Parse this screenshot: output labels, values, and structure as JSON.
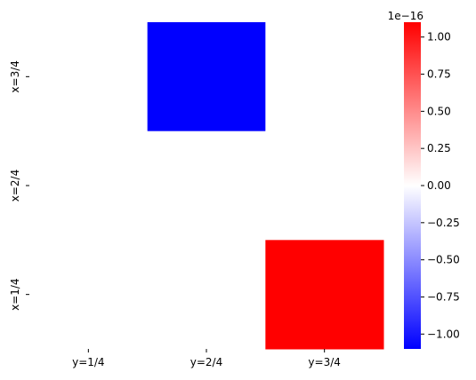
{
  "chart_data": {
    "type": "heatmap",
    "x_categories": [
      "y=1/4",
      "y=2/4",
      "y=3/4"
    ],
    "y_categories": [
      "x=3/4",
      "x=2/4",
      "x=1/4"
    ],
    "values": [
      [
        0.0,
        -1.1e-16,
        0.0
      ],
      [
        0.0,
        0.0,
        0.0
      ],
      [
        0.0,
        0.0,
        1.1e-16
      ]
    ],
    "colormap": {
      "low": "#0000ff",
      "mid": "#ffffff",
      "high": "#ff0000"
    },
    "vlim": [
      -1.1e-16,
      1.1e-16
    ],
    "colorbar": {
      "ticks": [
        1.0,
        0.75,
        0.5,
        0.25,
        0.0,
        -0.25,
        -0.5,
        -0.75,
        -1.0
      ],
      "tick_labels": [
        "1.00",
        "0.75",
        "0.50",
        "0.25",
        "0.00",
        "−0.25",
        "−0.50",
        "−0.75",
        "−1.00"
      ],
      "scale_label": "1e−16",
      "range": [
        -1.1,
        1.1
      ]
    }
  }
}
